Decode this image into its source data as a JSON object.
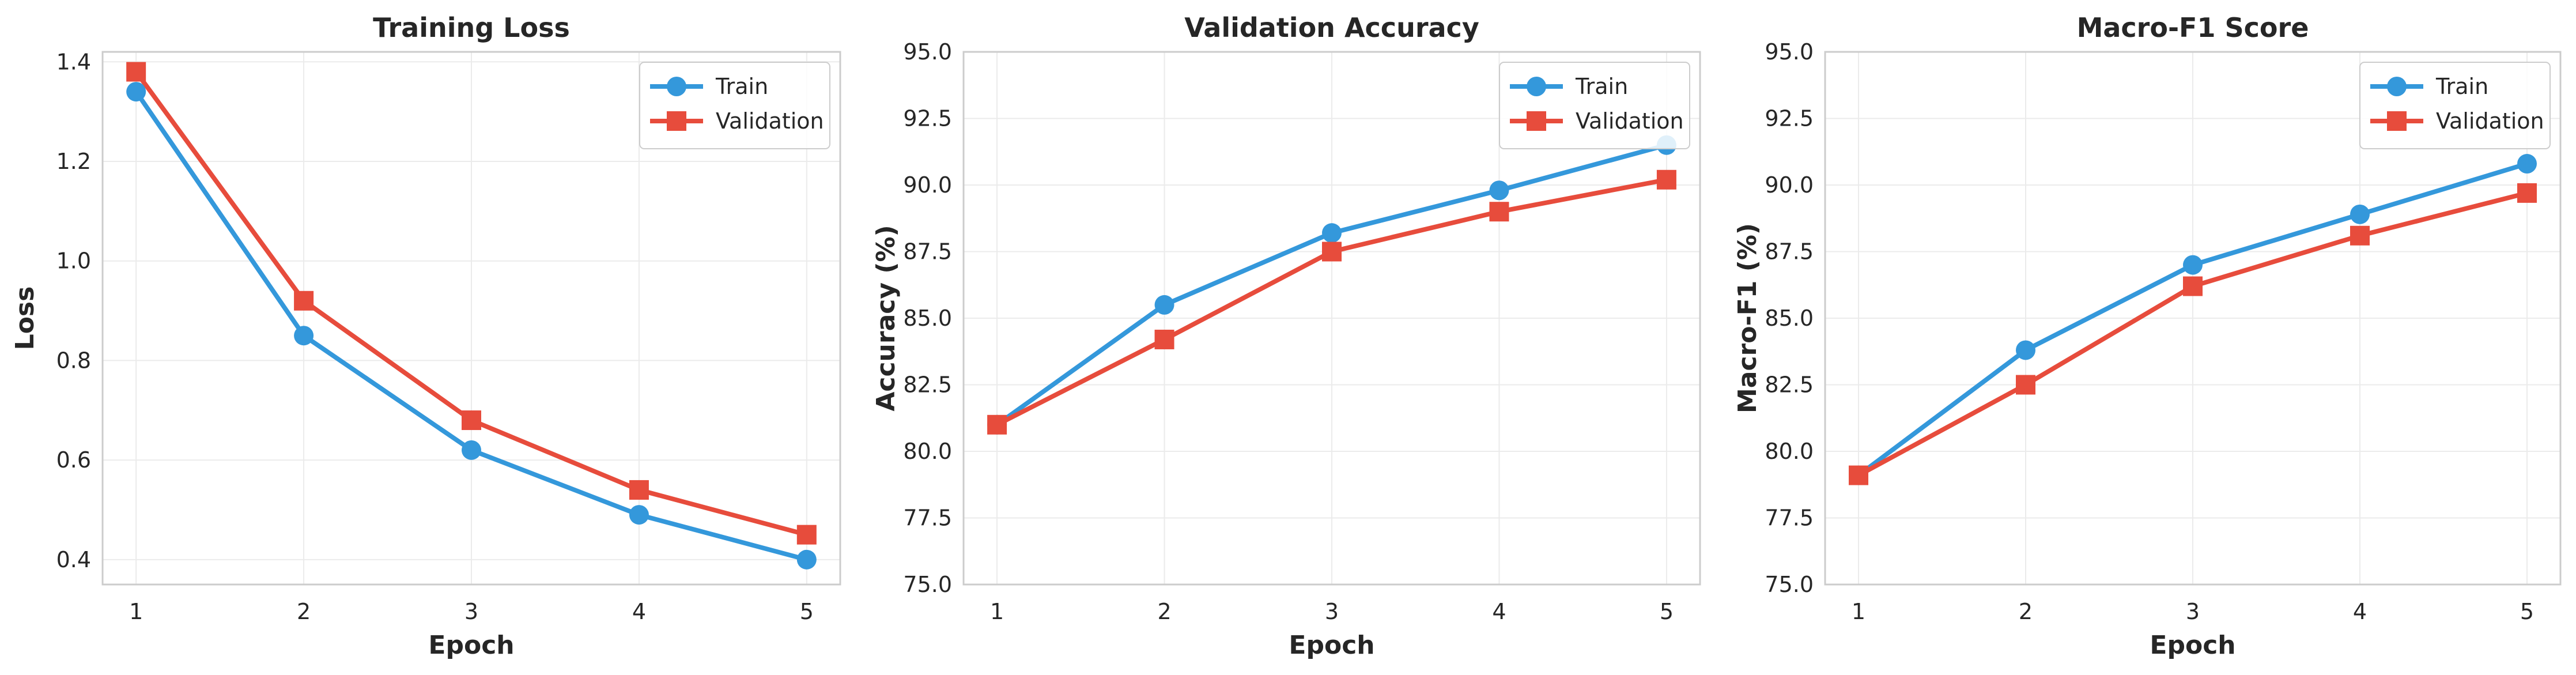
{
  "colors": {
    "train": "#3498db",
    "validation": "#e74c3c"
  },
  "chart_data": [
    {
      "type": "line",
      "title": "Training Loss",
      "xlabel": "Epoch",
      "ylabel": "Loss",
      "x": [
        1,
        2,
        3,
        4,
        5
      ],
      "xticks": [
        "1",
        "2",
        "3",
        "4",
        "5"
      ],
      "xlim": [
        0.8,
        5.2
      ],
      "ylim": [
        0.35,
        1.42
      ],
      "yticks": [
        "0.4",
        "0.6",
        "0.8",
        "1.0",
        "1.2",
        "1.4"
      ],
      "grid": true,
      "legend": "top-right",
      "series": [
        {
          "name": "Train",
          "marker": "circle",
          "values": [
            1.34,
            0.85,
            0.62,
            0.49,
            0.4
          ]
        },
        {
          "name": "Validation",
          "marker": "square",
          "values": [
            1.38,
            0.92,
            0.68,
            0.54,
            0.45
          ]
        }
      ]
    },
    {
      "type": "line",
      "title": "Validation Accuracy",
      "xlabel": "Epoch",
      "ylabel": "Accuracy (%)",
      "x": [
        1,
        2,
        3,
        4,
        5
      ],
      "xticks": [
        "1",
        "2",
        "3",
        "4",
        "5"
      ],
      "xlim": [
        0.8,
        5.2
      ],
      "ylim": [
        75,
        95
      ],
      "yticks": [
        "75.0",
        "77.5",
        "80.0",
        "82.5",
        "85.0",
        "87.5",
        "90.0",
        "92.5",
        "95.0"
      ],
      "grid": true,
      "legend": "top-right",
      "series": [
        {
          "name": "Train",
          "marker": "circle",
          "values": [
            81.0,
            85.5,
            88.2,
            89.8,
            91.5
          ]
        },
        {
          "name": "Validation",
          "marker": "square",
          "values": [
            81.0,
            84.2,
            87.5,
            89.0,
            90.2
          ]
        }
      ]
    },
    {
      "type": "line",
      "title": "Macro-F1 Score",
      "xlabel": "Epoch",
      "ylabel": "Macro-F1 (%)",
      "x": [
        1,
        2,
        3,
        4,
        5
      ],
      "xticks": [
        "1",
        "2",
        "3",
        "4",
        "5"
      ],
      "xlim": [
        0.8,
        5.2
      ],
      "ylim": [
        75,
        95
      ],
      "yticks": [
        "75.0",
        "77.5",
        "80.0",
        "82.5",
        "85.0",
        "87.5",
        "90.0",
        "92.5",
        "95.0"
      ],
      "grid": true,
      "legend": "top-right",
      "series": [
        {
          "name": "Train",
          "marker": "circle",
          "values": [
            79.1,
            83.8,
            87.0,
            88.9,
            90.8
          ]
        },
        {
          "name": "Validation",
          "marker": "square",
          "values": [
            79.1,
            82.5,
            86.2,
            88.1,
            89.7
          ]
        }
      ]
    }
  ]
}
